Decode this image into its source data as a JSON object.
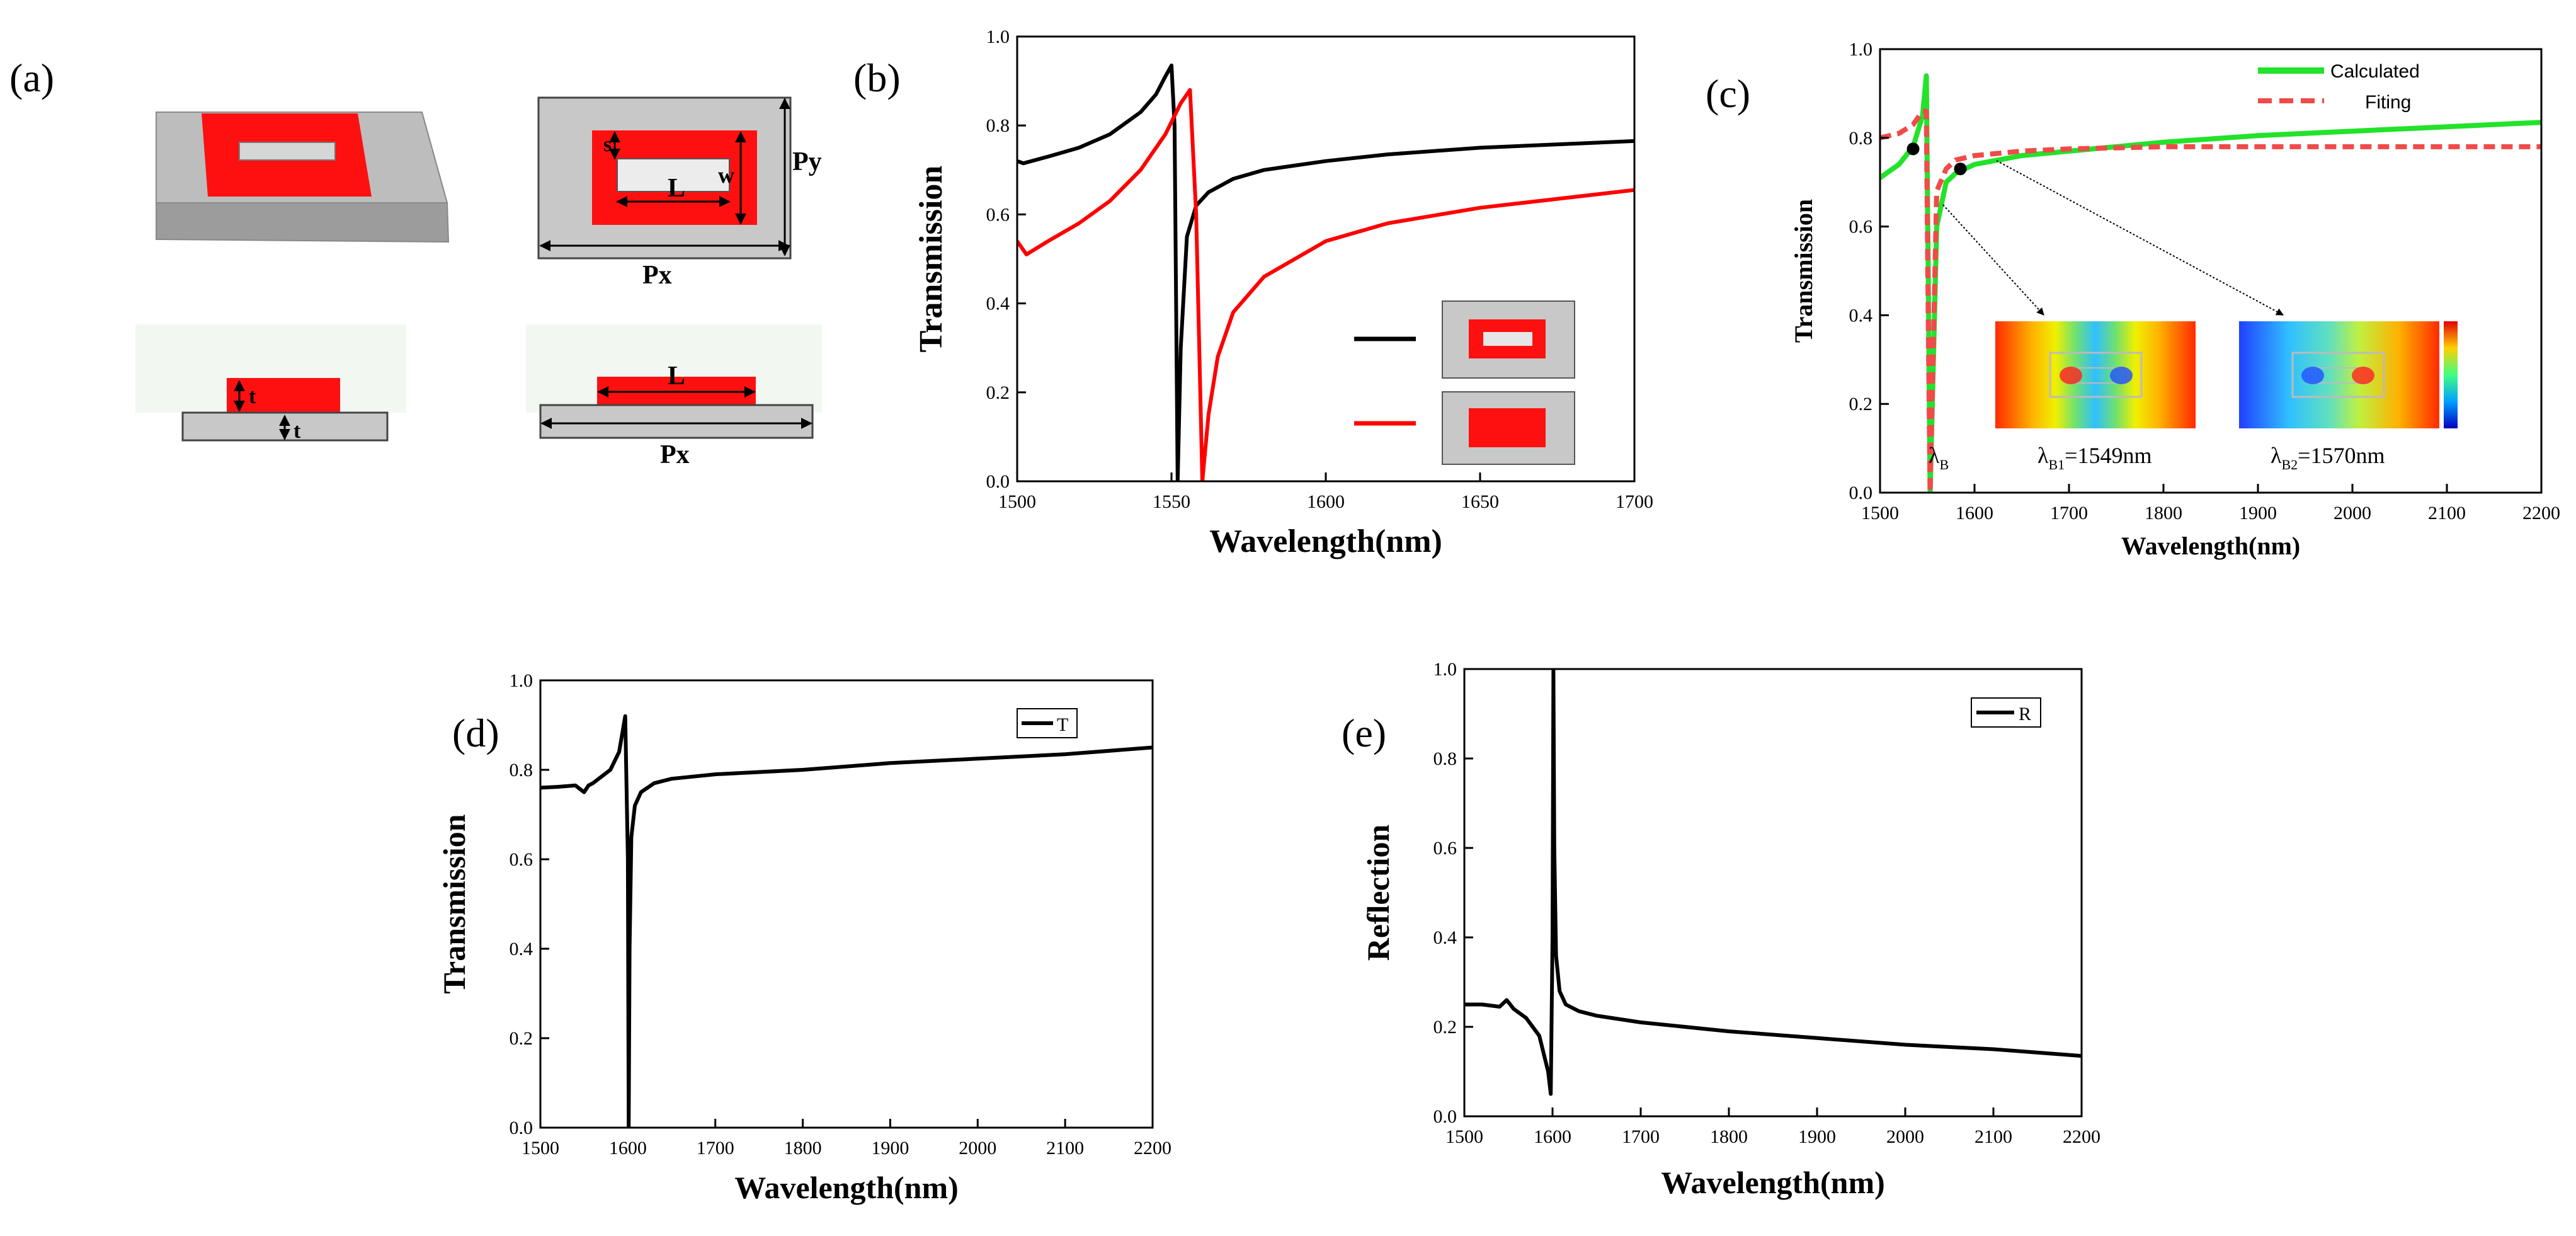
{
  "panel_labels": {
    "a": "(a)",
    "b": "(b)",
    "c": "(c)",
    "d": "(d)",
    "e": "(e)"
  },
  "colors": {
    "black": "#000000",
    "red": "#ff0000",
    "green": "#22e22a",
    "dashed_red": "#f04a4a",
    "grey": "#c8c8c8"
  },
  "schematic": {
    "labels": {
      "s": "s",
      "w": "w",
      "L": "L",
      "Py": "Py",
      "Px": "Px",
      "t_top": "t",
      "t_bottom": "t",
      "L_side": "L",
      "Px_side": "Px"
    }
  },
  "chart_data": [
    {
      "id": "b",
      "type": "line",
      "xlabel": "Wavelength(nm)",
      "ylabel": "Transmission",
      "xlim": [
        1500,
        1700
      ],
      "ylim": [
        0,
        1.0
      ],
      "xticks": [
        1500,
        1550,
        1600,
        1650,
        1700
      ],
      "yticks": [
        0.0,
        0.2,
        0.4,
        0.6,
        0.8,
        1.0
      ],
      "series": [
        {
          "name": "with slot",
          "color": "#000000",
          "dash": "",
          "x": [
            1500,
            1502,
            1510,
            1520,
            1530,
            1540,
            1545,
            1548,
            1550,
            1551,
            1552,
            1553,
            1555,
            1558,
            1562,
            1570,
            1580,
            1600,
            1620,
            1650,
            1700
          ],
          "y": [
            0.72,
            0.715,
            0.73,
            0.75,
            0.78,
            0.83,
            0.87,
            0.91,
            0.935,
            0.8,
            0.0,
            0.3,
            0.55,
            0.62,
            0.65,
            0.68,
            0.7,
            0.72,
            0.735,
            0.75,
            0.765
          ]
        },
        {
          "name": "without slot",
          "color": "#ff0000",
          "dash": "",
          "x": [
            1500,
            1503,
            1510,
            1520,
            1530,
            1540,
            1548,
            1553,
            1556,
            1558,
            1560,
            1562,
            1565,
            1570,
            1580,
            1600,
            1620,
            1650,
            1700
          ],
          "y": [
            0.54,
            0.51,
            0.54,
            0.58,
            0.63,
            0.7,
            0.78,
            0.85,
            0.88,
            0.6,
            0.0,
            0.15,
            0.28,
            0.38,
            0.46,
            0.54,
            0.58,
            0.615,
            0.655
          ]
        }
      ]
    },
    {
      "id": "c",
      "type": "line",
      "xlabel": "Wavelength(nm)",
      "ylabel": "Transmission",
      "xlim": [
        1500,
        2200
      ],
      "ylim": [
        0,
        1.0
      ],
      "xticks": [
        1500,
        1600,
        1700,
        1800,
        1900,
        2000,
        2100,
        2200
      ],
      "yticks": [
        0.0,
        0.2,
        0.4,
        0.6,
        0.8,
        1.0
      ],
      "legend": [
        "Calculated",
        "Fiting"
      ],
      "series": [
        {
          "name": "Calculated",
          "color": "#22e22a",
          "dash": "",
          "x": [
            1500,
            1520,
            1535,
            1545,
            1549,
            1551,
            1553,
            1560,
            1570,
            1580,
            1600,
            1650,
            1700,
            1800,
            1900,
            2000,
            2100,
            2200
          ],
          "y": [
            0.71,
            0.74,
            0.78,
            0.85,
            0.94,
            0.5,
            0.0,
            0.6,
            0.7,
            0.72,
            0.74,
            0.76,
            0.77,
            0.79,
            0.805,
            0.815,
            0.825,
            0.835
          ]
        },
        {
          "name": "Fiting",
          "color": "#f04a4a",
          "dash": "18,10",
          "x": [
            1500,
            1520,
            1535,
            1545,
            1549,
            1551,
            1553,
            1560,
            1570,
            1580,
            1600,
            1650,
            1700,
            1800,
            1900,
            2000,
            2100,
            2200
          ],
          "y": [
            0.8,
            0.81,
            0.83,
            0.86,
            0.86,
            0.4,
            0.0,
            0.68,
            0.73,
            0.75,
            0.76,
            0.77,
            0.775,
            0.78,
            0.78,
            0.78,
            0.78,
            0.78
          ]
        }
      ],
      "markers": [
        {
          "x": 1535,
          "y": 0.775
        },
        {
          "x": 1585,
          "y": 0.73
        }
      ],
      "annotations": {
        "lambda_B": "λ",
        "lambda_B_sub": "B",
        "lambda_B1": "λ",
        "lambda_B1_sub": "B1",
        "lambda_B1_val": "=1549nm",
        "lambda_B2": "λ",
        "lambda_B2_sub": "B2",
        "lambda_B2_val": "=1570nm"
      }
    },
    {
      "id": "d",
      "type": "line",
      "xlabel": "Wavelength(nm)",
      "ylabel": "Transmission",
      "xlim": [
        1500,
        2200
      ],
      "ylim": [
        0,
        1.0
      ],
      "xticks": [
        1500,
        1600,
        1700,
        1800,
        1900,
        2000,
        2100,
        2200
      ],
      "yticks": [
        0.0,
        0.2,
        0.4,
        0.6,
        0.8,
        1.0
      ],
      "legend": [
        "T"
      ],
      "series": [
        {
          "name": "T",
          "color": "#000000",
          "dash": "",
          "x": [
            1500,
            1520,
            1540,
            1550,
            1555,
            1560,
            1580,
            1590,
            1597,
            1600,
            1601,
            1602,
            1604,
            1608,
            1615,
            1630,
            1650,
            1700,
            1800,
            1900,
            2000,
            2100,
            2200
          ],
          "y": [
            0.76,
            0.762,
            0.765,
            0.75,
            0.765,
            0.77,
            0.8,
            0.84,
            0.92,
            0.6,
            0.0,
            0.4,
            0.65,
            0.72,
            0.75,
            0.77,
            0.78,
            0.79,
            0.8,
            0.815,
            0.825,
            0.835,
            0.85
          ]
        }
      ]
    },
    {
      "id": "e",
      "type": "line",
      "xlabel": "Wavelength(nm)",
      "ylabel": "Reflection",
      "xlim": [
        1500,
        2200
      ],
      "ylim": [
        0,
        1.0
      ],
      "xticks": [
        1500,
        1600,
        1700,
        1800,
        1900,
        2000,
        2100,
        2200
      ],
      "yticks": [
        0.0,
        0.2,
        0.4,
        0.6,
        0.8,
        1.0
      ],
      "legend": [
        "R"
      ],
      "series": [
        {
          "name": "R",
          "color": "#000000",
          "dash": "",
          "x": [
            1500,
            1520,
            1540,
            1548,
            1552,
            1556,
            1570,
            1585,
            1595,
            1598,
            1600,
            1601,
            1602,
            1604,
            1608,
            1615,
            1630,
            1650,
            1700,
            1800,
            1900,
            2000,
            2100,
            2200
          ],
          "y": [
            0.25,
            0.25,
            0.245,
            0.26,
            0.25,
            0.24,
            0.22,
            0.18,
            0.1,
            0.05,
            0.4,
            1.0,
            0.6,
            0.36,
            0.28,
            0.25,
            0.235,
            0.225,
            0.21,
            0.19,
            0.175,
            0.16,
            0.15,
            0.135
          ]
        }
      ]
    }
  ]
}
